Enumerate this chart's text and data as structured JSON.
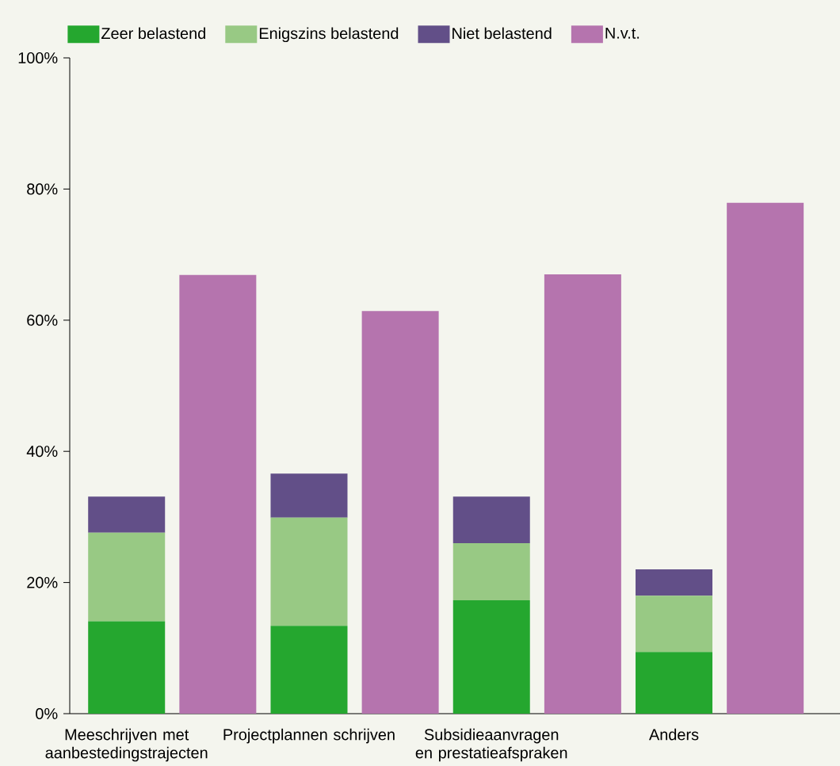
{
  "chart_data": {
    "type": "bar",
    "stacked": true,
    "categories": [
      "Meeschrijven met aanbestedingstrajecten",
      null,
      "Projectplannen schrijven",
      null,
      "Subsidieaanvragen en prestatieafspraken",
      null,
      "Anders",
      null
    ],
    "series": [
      {
        "name": "Zeer belastend",
        "color": "#25a72f",
        "values": [
          14.1,
          null,
          13.4,
          null,
          17.3,
          null,
          9.4,
          null
        ]
      },
      {
        "name": "Enigszins belastend",
        "color": "#98c984",
        "values": [
          13.5,
          null,
          16.5,
          null,
          8.7,
          null,
          8.6,
          null
        ]
      },
      {
        "name": "Niet belastend",
        "color": "#624f88",
        "values": [
          5.5,
          null,
          6.7,
          null,
          7.1,
          null,
          4.0,
          null
        ]
      },
      {
        "name": "N.v.t.",
        "color": "#b574ae",
        "values": [
          null,
          66.9,
          null,
          61.4,
          null,
          67.0,
          null,
          77.9
        ]
      }
    ],
    "ylim": [
      0,
      100
    ],
    "yticks": [
      {
        "value": 0,
        "label": "0%"
      },
      {
        "value": 20,
        "label": "20%"
      },
      {
        "value": 40,
        "label": "40%"
      },
      {
        "value": 60,
        "label": "60%"
      },
      {
        "value": 80,
        "label": "80%"
      },
      {
        "value": 100,
        "label": "100%"
      }
    ],
    "grid": false,
    "legend": "top"
  }
}
